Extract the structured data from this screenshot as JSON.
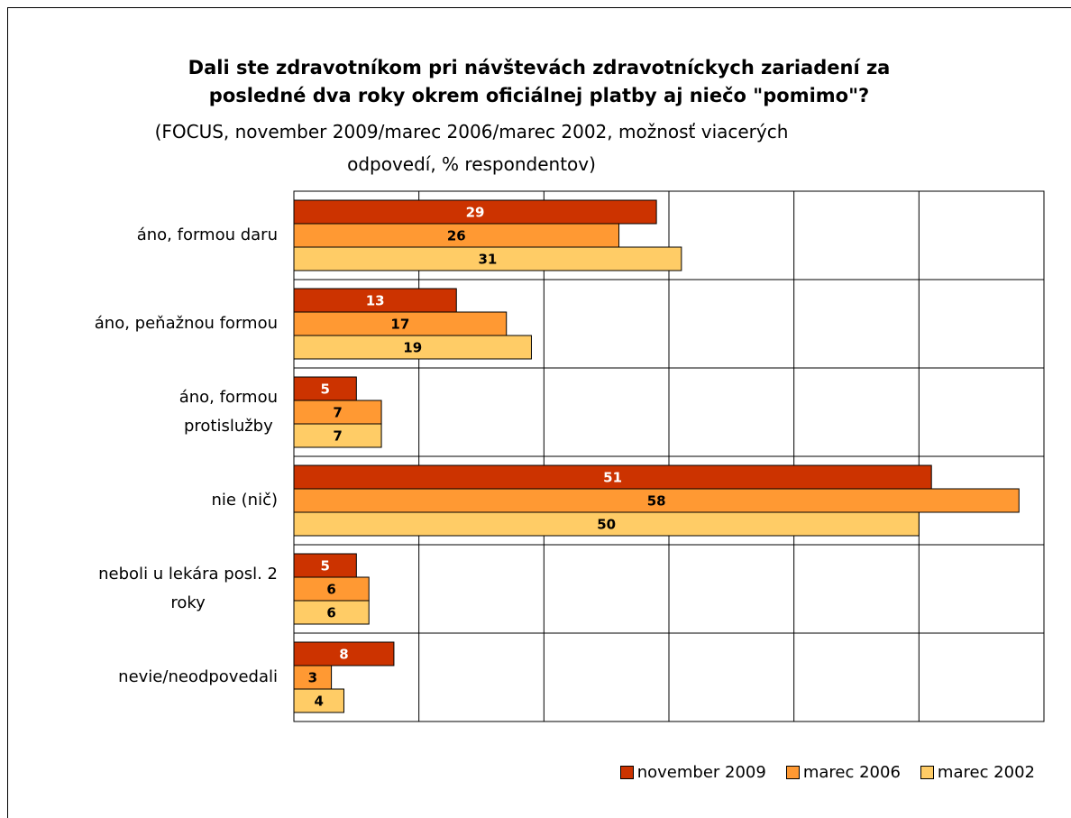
{
  "chart_data": {
    "type": "barh",
    "title": "Dali ste zdravotníkom pri návštevách zdravotníckych zariadení za\nposledné dva roky okrem oficiálnej platby aj niečo \"pomimo\"?",
    "subtitle": "(FOCUS, november 2009/marec 2006/marec 2002, možnosť viacerých\nodpovedí, % respondentov)",
    "categories": [
      "áno, formou daru",
      "áno, peňažnou formou",
      "áno, formou\nprotislužby",
      "nie (nič)",
      "neboli u lekára posl. 2\nroky",
      "nevie/neodpovedali"
    ],
    "series": [
      {
        "name": "november 2009",
        "color": "#cc3300",
        "label_color": "#ffffff",
        "values": [
          29,
          13,
          5,
          51,
          5,
          8
        ]
      },
      {
        "name": "marec 2006",
        "color": "#ff9933",
        "label_color": "#000000",
        "values": [
          26,
          17,
          7,
          58,
          6,
          3
        ]
      },
      {
        "name": "marec 2002",
        "color": "#ffcc66",
        "label_color": "#000000",
        "values": [
          31,
          19,
          7,
          50,
          6,
          4
        ]
      }
    ],
    "xlim": [
      0,
      60
    ],
    "xticks": [
      0,
      10,
      20,
      30,
      40,
      50,
      60
    ],
    "grid": true,
    "legend": "bottom-right"
  }
}
